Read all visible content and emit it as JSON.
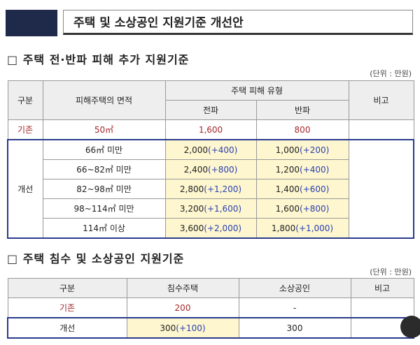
{
  "header": {
    "title": "주택 및 소상공인 지원기준 개선안"
  },
  "section1": {
    "heading": "□ 주택 전·반파 피해 추가 지원기준",
    "unit": "(단위 : 만원)",
    "table": {
      "headers": [
        "구분",
        "피해주택의 면적",
        "주택 피해 유형",
        "비고"
      ],
      "subheaders": [
        "전파",
        "반파"
      ],
      "existing": {
        "label": "기존",
        "area": "50㎡",
        "full": "1,600",
        "half": "800"
      },
      "improved": {
        "label": "개선",
        "rows": [
          {
            "area": "66㎡ 미만",
            "full": "2,000",
            "full_increase": "(+400)",
            "half": "1,000",
            "half_increase": "(+200)"
          },
          {
            "area": "66~82㎡ 미만",
            "full": "2,400",
            "full_increase": "(+800)",
            "half": "1,200",
            "half_increase": "(+400)"
          },
          {
            "area": "82~98㎡ 미만",
            "full": "2,800",
            "full_increase": "(+1,200)",
            "half": "1,400",
            "half_increase": "(+600)"
          },
          {
            "area": "98~114㎡ 미만",
            "full": "3,200",
            "full_increase": "(+1,600)",
            "half": "1,600",
            "half_increase": "(+800)"
          },
          {
            "area": "114㎡ 이상",
            "full": "3,600",
            "full_increase": "(+2,000)",
            "half": "1,800",
            "half_increase": "(+1,000)"
          }
        ]
      }
    }
  },
  "section2": {
    "heading": "□ 주택 침수 및 소상공인 지원기준",
    "unit": "(단위 : 만원)",
    "table": {
      "headers": [
        "구분",
        "침수주택",
        "소상공인",
        "비고"
      ],
      "existing": {
        "label": "기존",
        "flood": "200",
        "business": "-"
      },
      "improved": {
        "label": "개선",
        "flood": "300",
        "flood_increase": "(+100)",
        "business": "300"
      }
    }
  }
}
